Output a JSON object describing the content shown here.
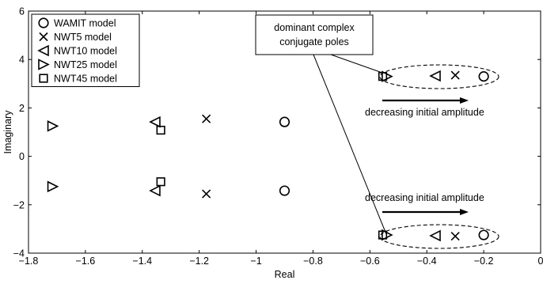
{
  "chart_data": {
    "type": "scatter",
    "title": "",
    "xlabel": "Real",
    "ylabel": "Imaginary",
    "xlim": [
      -1.8,
      0
    ],
    "ylim": [
      -4,
      6
    ],
    "xticks": [
      -1.8,
      -1.6,
      -1.4,
      -1.2,
      -1,
      -0.8,
      -0.6,
      -0.4,
      -0.2,
      0
    ],
    "xtick_labels": [
      "−1.8",
      "−1.6",
      "−1.4",
      "−1.2",
      "−1",
      "−0.8",
      "−0.6",
      "−0.4",
      "−0.2",
      "0"
    ],
    "yticks": [
      -4,
      -2,
      0,
      2,
      4,
      6
    ],
    "ytick_labels": [
      "−4",
      "−2",
      "0",
      "2",
      "4",
      "6"
    ],
    "grid": false,
    "legend_position": "top-left",
    "series": [
      {
        "name": "WAMIT model",
        "marker": "circle",
        "points": [
          [
            -0.9,
            1.42
          ],
          [
            -0.9,
            -1.42
          ],
          [
            -0.2,
            3.3
          ],
          [
            -0.2,
            -3.25
          ]
        ]
      },
      {
        "name": "NWT5 model",
        "marker": "x",
        "points": [
          [
            -1.175,
            1.55
          ],
          [
            -1.175,
            -1.55
          ],
          [
            -0.3,
            3.35
          ],
          [
            -0.3,
            -3.3
          ]
        ]
      },
      {
        "name": "NWT10 model",
        "marker": "triangle-left",
        "points": [
          [
            -1.355,
            1.42
          ],
          [
            -1.355,
            -1.42
          ],
          [
            -0.37,
            3.32
          ],
          [
            -0.37,
            -3.28
          ]
        ]
      },
      {
        "name": "NWT25 model",
        "marker": "triangle-right",
        "points": [
          [
            -1.715,
            1.25
          ],
          [
            -1.715,
            -1.25
          ],
          [
            -0.54,
            3.3
          ],
          [
            -0.54,
            -3.25
          ]
        ]
      },
      {
        "name": "NWT45 model",
        "marker": "square",
        "points": [
          [
            -1.335,
            1.08
          ],
          [
            -1.335,
            -1.05
          ],
          [
            -0.555,
            3.3
          ],
          [
            -0.555,
            -3.25
          ]
        ]
      }
    ],
    "annotations": {
      "dominant_poles_line1": "dominant complex",
      "dominant_poles_line2": "conjugate poles",
      "decreasing_upper": "decreasing initial amplitude",
      "decreasing_lower": "decreasing initial amplitude"
    }
  }
}
